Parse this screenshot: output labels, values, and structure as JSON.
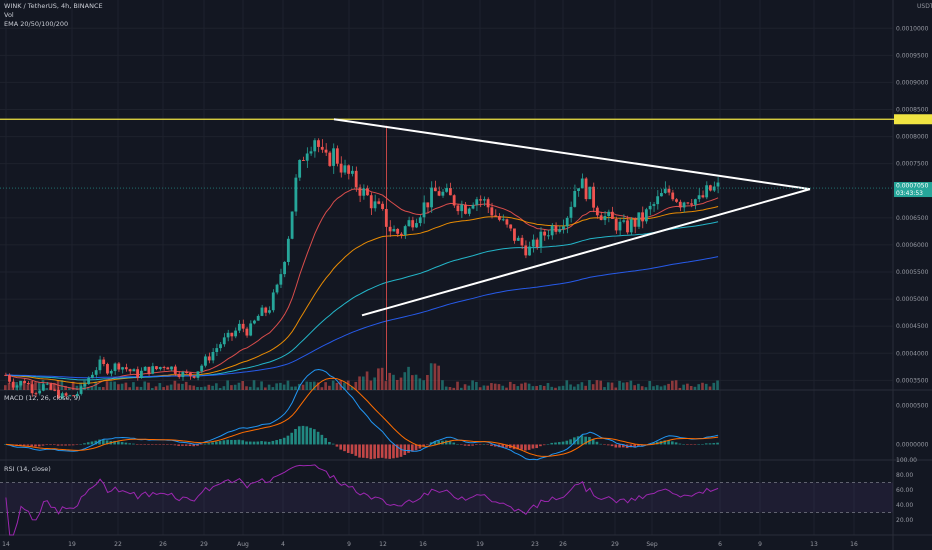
{
  "header": {
    "symbol_line": "WINK / TetherUS, 4h, BINANCE",
    "vol_label": "Vol",
    "ema_label": "EMA 20/50/100/200"
  },
  "price_axis": {
    "currency": "USDT",
    "ticks": [
      "0.0010000",
      "0.0009500",
      "0.0009000",
      "0.0008500",
      "0.0008000",
      "0.0007500",
      "0.0006500",
      "0.0006000",
      "0.0005500",
      "0.0005000",
      "0.0004500",
      "0.0004000",
      "0.0003500"
    ],
    "tick_values": [
      0.001,
      0.00095,
      0.0009,
      0.00085,
      0.0008,
      0.00075,
      0.00065,
      0.0006,
      0.00055,
      0.0005,
      0.00045,
      0.0004,
      0.00035
    ],
    "resistance_level": 0.000832,
    "current_price": "0.0007050",
    "countdown": "03:43:53"
  },
  "macd": {
    "label": "MACD (12, 26, close, 9)",
    "ticks": [
      "0.0000500",
      "0.0000000"
    ]
  },
  "rsi": {
    "label": "RSI (14, close)",
    "ticks": [
      "100.00",
      "80.00",
      "60.00",
      "40.00",
      "20.00"
    ]
  },
  "time_axis": {
    "labels": [
      "14",
      "19",
      "22",
      "26",
      "29",
      "Aug",
      "4",
      "9",
      "12",
      "16",
      "19",
      "23",
      "26",
      "29",
      "Sep",
      "6",
      "9",
      "13",
      "16"
    ]
  },
  "colors": {
    "bg": "#131722",
    "up": "#26a69a",
    "down": "#ef5350",
    "grid": "#1e222d",
    "resistance": "#f0e442",
    "triangle": "#ffffff",
    "ema20": "#ef5350",
    "ema50": "#ff9800",
    "ema100": "#26c6da",
    "ema200": "#2962ff",
    "rsi": "#9c27b0",
    "macd": "#2196f3",
    "signal": "#ff6d00"
  },
  "chart_data": {
    "type": "candlestick",
    "timeframe": "4h",
    "price_range": [
      0.00031,
      0.00103
    ],
    "series": [
      {
        "name": "EMA 20",
        "color": "#ef5350"
      },
      {
        "name": "EMA 50",
        "color": "#ff9800"
      },
      {
        "name": "EMA 100",
        "color": "#26c6da"
      },
      {
        "name": "EMA 200",
        "color": "#2962ff"
      }
    ],
    "approx_closes": [
      0.00036,
      0.00034,
      0.00035,
      0.00033,
      0.00034,
      0.00033,
      0.00032,
      0.00032,
      0.00033,
      0.00036,
      0.00038,
      0.00037,
      0.00038,
      0.00037,
      0.00036,
      0.00037,
      0.00037,
      0.00038,
      0.00037,
      0.00036,
      0.00036,
      0.00038,
      0.0004,
      0.00042,
      0.00043,
      0.00045,
      0.00044,
      0.00047,
      0.00048,
      0.00052,
      0.0006,
      0.00072,
      0.00078,
      0.0008,
      0.00075,
      0.00077,
      0.00074,
      0.00072,
      0.0007,
      0.00068,
      0.00066,
      0.00063,
      0.00062,
      0.00064,
      0.00066,
      0.00068,
      0.0007,
      0.00069,
      0.00068,
      0.00067,
      0.00069,
      0.00068,
      0.00066,
      0.00064,
      0.00062,
      0.0006,
      0.00059,
      0.00061,
      0.00063,
      0.00064,
      0.00066,
      0.00072,
      0.0007,
      0.00067,
      0.00065,
      0.00064,
      0.00063,
      0.00064,
      0.00065,
      0.00067,
      0.00069,
      0.0007,
      0.00068,
      0.00069,
      0.00068,
      0.0007,
      0.000705
    ],
    "macd_range": [
      -2e-05,
      7e-05
    ],
    "rsi_range": [
      0,
      100
    ],
    "rsi_bands": [
      70,
      30
    ]
  }
}
